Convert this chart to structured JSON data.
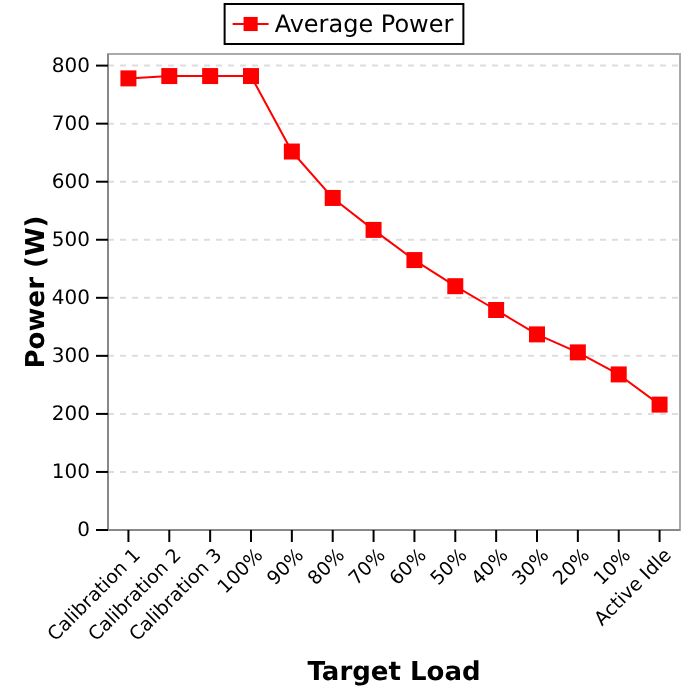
{
  "chart_data": {
    "type": "line",
    "xlabel": "Target Load",
    "ylabel": "Power (W)",
    "categories": [
      "Calibration 1",
      "Calibration 2",
      "Calibration 3",
      "100%",
      "90%",
      "80%",
      "70%",
      "60%",
      "50%",
      "40%",
      "30%",
      "20%",
      "10%",
      "Active Idle"
    ],
    "series": [
      {
        "name": "Average Power",
        "color": "#ff0000",
        "values": [
          778,
          782,
          782,
          782,
          652,
          572,
          517,
          465,
          420,
          379,
          337,
          306,
          268,
          216
        ]
      }
    ],
    "ylim": [
      0,
      820
    ],
    "yticks": [
      0,
      100,
      200,
      300,
      400,
      500,
      600,
      700,
      800
    ],
    "grid": "y",
    "legend": "top",
    "marker": "square",
    "line_style": "solid"
  }
}
